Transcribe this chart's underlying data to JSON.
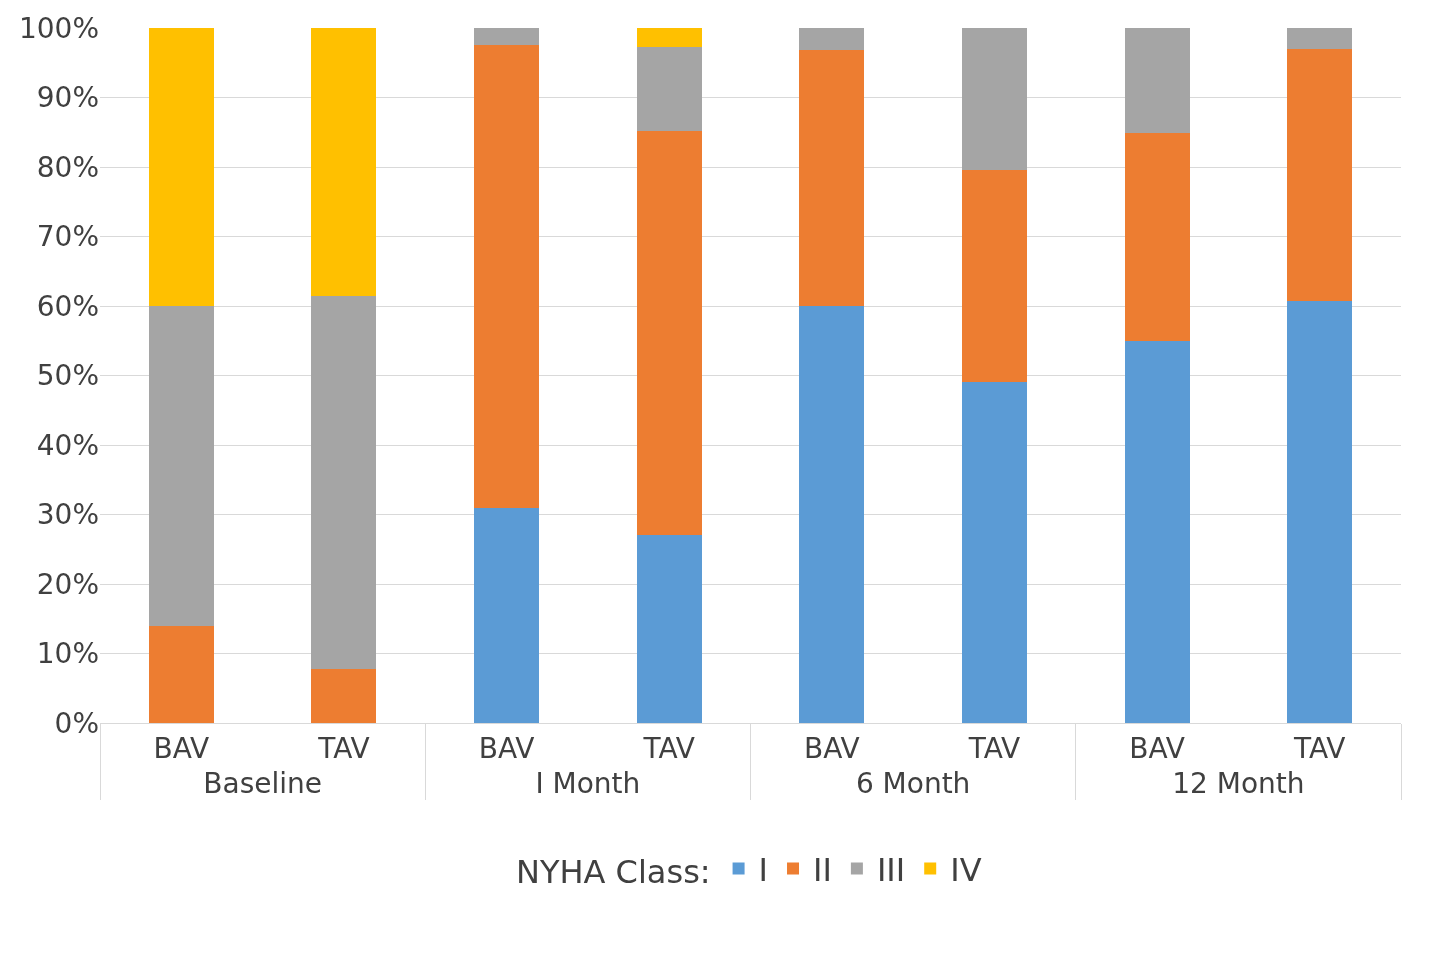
{
  "chart_data": {
    "type": "bar",
    "stacked": true,
    "categories": [
      "BAV",
      "TAV",
      "BAV",
      "TAV",
      "BAV",
      "TAV",
      "BAV",
      "TAV"
    ],
    "annotations": [
      "Baseline",
      "I Month",
      "6 Month",
      "12 Month"
    ],
    "series": [
      {
        "name": "I",
        "color": "#5b9bd5",
        "values": [
          0,
          0,
          31,
          27,
          60,
          49,
          55,
          60.7
        ]
      },
      {
        "name": "II",
        "color": "#ed7d31",
        "values": [
          14,
          7.7,
          66.6,
          58.2,
          36.9,
          30.6,
          29.9,
          36.3
        ]
      },
      {
        "name": "III",
        "color": "#a5a5a5",
        "values": [
          46,
          53.8,
          2.4,
          12,
          3.1,
          20.4,
          15.1,
          3
        ]
      },
      {
        "name": "IV",
        "color": "#ffc000",
        "values": [
          40,
          38.5,
          0,
          2.8,
          0,
          0,
          0,
          0
        ]
      }
    ],
    "legend_title": "NYHA Class:",
    "legend": "bottom",
    "grid": "y",
    "ylim": [
      0,
      100
    ],
    "yticks": [
      {
        "value": 0,
        "label": "0%"
      },
      {
        "value": 10,
        "label": "10%"
      },
      {
        "value": 20,
        "label": "20%"
      },
      {
        "value": 30,
        "label": "30%"
      },
      {
        "value": 40,
        "label": "40%"
      },
      {
        "value": 50,
        "label": "50%"
      },
      {
        "value": 60,
        "label": "60%"
      },
      {
        "value": 70,
        "label": "70%"
      },
      {
        "value": 80,
        "label": "80%"
      },
      {
        "value": 90,
        "label": "90%"
      },
      {
        "value": 100,
        "label": "100%"
      }
    ]
  }
}
